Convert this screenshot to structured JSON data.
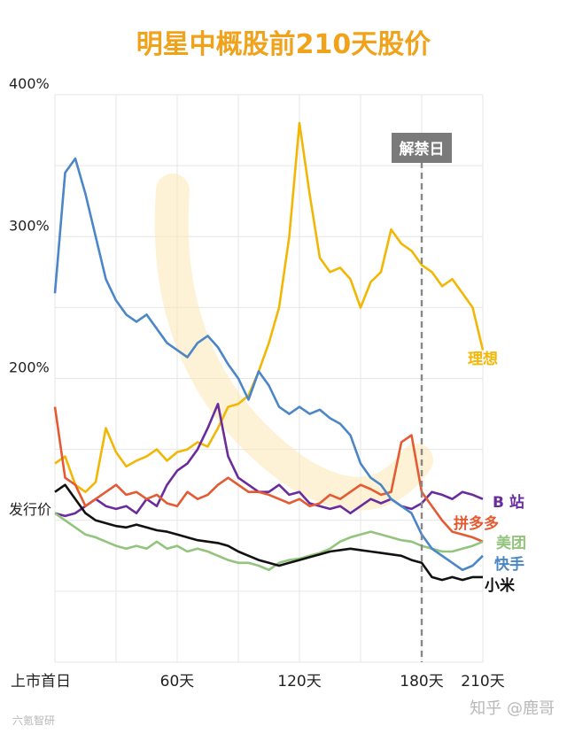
{
  "chart_data": {
    "type": "line",
    "title": "明星中概股前210天股价",
    "xlabel": "",
    "ylabel": "",
    "x_ticks": [
      {
        "value": 0,
        "label": "上市首日"
      },
      {
        "value": 60,
        "label": "60天"
      },
      {
        "value": 120,
        "label": "120天"
      },
      {
        "value": 180,
        "label": "180天"
      },
      {
        "value": 210,
        "label": "210天"
      }
    ],
    "y_ticks": [
      {
        "value": 100,
        "label": "发行价"
      },
      {
        "value": 200,
        "label": "200%"
      },
      {
        "value": 300,
        "label": "300%"
      },
      {
        "value": 400,
        "label": "400%"
      }
    ],
    "xlim": [
      0,
      210
    ],
    "ylim": [
      0,
      400
    ],
    "grid": true,
    "annotation": {
      "label": "解禁日",
      "x": 180
    },
    "series": [
      {
        "name": "理想",
        "color": "#f2b705",
        "x": [
          0,
          5,
          10,
          15,
          20,
          25,
          30,
          35,
          40,
          45,
          50,
          55,
          60,
          65,
          70,
          75,
          80,
          85,
          90,
          95,
          100,
          105,
          110,
          115,
          120,
          125,
          130,
          135,
          140,
          145,
          150,
          155,
          160,
          165,
          170,
          175,
          180,
          185,
          190,
          195,
          200,
          205,
          210
        ],
        "values": [
          140,
          145,
          125,
          120,
          127,
          165,
          148,
          138,
          142,
          145,
          150,
          142,
          148,
          150,
          155,
          152,
          165,
          180,
          182,
          188,
          205,
          225,
          250,
          300,
          380,
          330,
          285,
          275,
          278,
          270,
          250,
          268,
          275,
          305,
          295,
          290,
          280,
          275,
          265,
          270,
          260,
          250,
          220
        ]
      },
      {
        "name": "B 站",
        "color": "#6a2c9c",
        "x": [
          0,
          5,
          10,
          15,
          20,
          25,
          30,
          35,
          40,
          45,
          50,
          55,
          60,
          65,
          70,
          75,
          80,
          85,
          90,
          95,
          100,
          105,
          110,
          115,
          120,
          125,
          130,
          135,
          140,
          145,
          150,
          155,
          160,
          165,
          170,
          175,
          180,
          185,
          190,
          195,
          200,
          205,
          210
        ],
        "values": [
          105,
          103,
          105,
          110,
          115,
          110,
          108,
          110,
          105,
          115,
          110,
          125,
          135,
          140,
          150,
          165,
          182,
          145,
          130,
          125,
          120,
          120,
          125,
          118,
          120,
          112,
          110,
          108,
          110,
          105,
          110,
          115,
          112,
          115,
          110,
          108,
          112,
          120,
          118,
          115,
          120,
          118,
          115
        ]
      },
      {
        "name": "拼多多",
        "color": "#e45a32",
        "x": [
          0,
          5,
          10,
          15,
          20,
          25,
          30,
          35,
          40,
          45,
          50,
          55,
          60,
          65,
          70,
          75,
          80,
          85,
          90,
          95,
          100,
          105,
          110,
          115,
          120,
          125,
          130,
          135,
          140,
          145,
          150,
          155,
          160,
          165,
          170,
          175,
          180,
          185,
          190,
          195,
          200,
          205,
          210
        ],
        "values": [
          180,
          130,
          125,
          110,
          115,
          120,
          125,
          118,
          120,
          115,
          118,
          112,
          110,
          120,
          115,
          118,
          125,
          130,
          125,
          120,
          120,
          118,
          115,
          112,
          115,
          110,
          112,
          118,
          115,
          120,
          125,
          122,
          118,
          120,
          155,
          160,
          120,
          110,
          100,
          92,
          90,
          88,
          85
        ]
      },
      {
        "name": "美团",
        "color": "#93c47d",
        "x": [
          0,
          5,
          10,
          15,
          20,
          25,
          30,
          35,
          40,
          45,
          50,
          55,
          60,
          65,
          70,
          75,
          80,
          85,
          90,
          95,
          100,
          105,
          110,
          115,
          120,
          125,
          130,
          135,
          140,
          145,
          150,
          155,
          160,
          165,
          170,
          175,
          180,
          185,
          190,
          195,
          200,
          205,
          210
        ],
        "values": [
          105,
          100,
          95,
          90,
          88,
          85,
          82,
          80,
          82,
          80,
          85,
          80,
          82,
          78,
          80,
          78,
          75,
          72,
          70,
          70,
          68,
          65,
          70,
          72,
          73,
          75,
          77,
          80,
          85,
          88,
          90,
          92,
          90,
          88,
          86,
          85,
          82,
          80,
          78,
          78,
          80,
          82,
          85
        ]
      },
      {
        "name": "快手",
        "color": "#4a86c8",
        "x": [
          0,
          5,
          10,
          15,
          20,
          25,
          30,
          35,
          40,
          45,
          50,
          55,
          60,
          65,
          70,
          75,
          80,
          85,
          90,
          95,
          100,
          105,
          110,
          115,
          120,
          125,
          130,
          135,
          140,
          145,
          150,
          155,
          160,
          165,
          170,
          175,
          180,
          185,
          190,
          195,
          200,
          205,
          210
        ],
        "values": [
          260,
          345,
          355,
          330,
          300,
          270,
          255,
          245,
          240,
          245,
          235,
          225,
          220,
          215,
          225,
          230,
          222,
          210,
          200,
          185,
          205,
          195,
          180,
          175,
          180,
          175,
          178,
          172,
          168,
          160,
          140,
          130,
          125,
          115,
          110,
          105,
          90,
          80,
          75,
          70,
          65,
          68,
          75
        ]
      },
      {
        "name": "小米",
        "color": "#111111",
        "x": [
          0,
          5,
          10,
          15,
          20,
          25,
          30,
          35,
          40,
          45,
          50,
          55,
          60,
          65,
          70,
          75,
          80,
          85,
          90,
          95,
          100,
          105,
          110,
          115,
          120,
          125,
          130,
          135,
          140,
          145,
          150,
          155,
          160,
          165,
          170,
          175,
          180,
          185,
          190,
          195,
          200,
          205,
          210
        ],
        "values": [
          120,
          125,
          115,
          105,
          100,
          98,
          96,
          95,
          97,
          95,
          93,
          92,
          90,
          88,
          86,
          85,
          84,
          82,
          78,
          75,
          72,
          70,
          68,
          70,
          72,
          74,
          76,
          78,
          79,
          80,
          79,
          78,
          77,
          76,
          75,
          72,
          70,
          60,
          58,
          60,
          58,
          60,
          60
        ]
      }
    ]
  },
  "watermark_left": "六氪智研",
  "watermark_right": "知乎 @鹿哥"
}
